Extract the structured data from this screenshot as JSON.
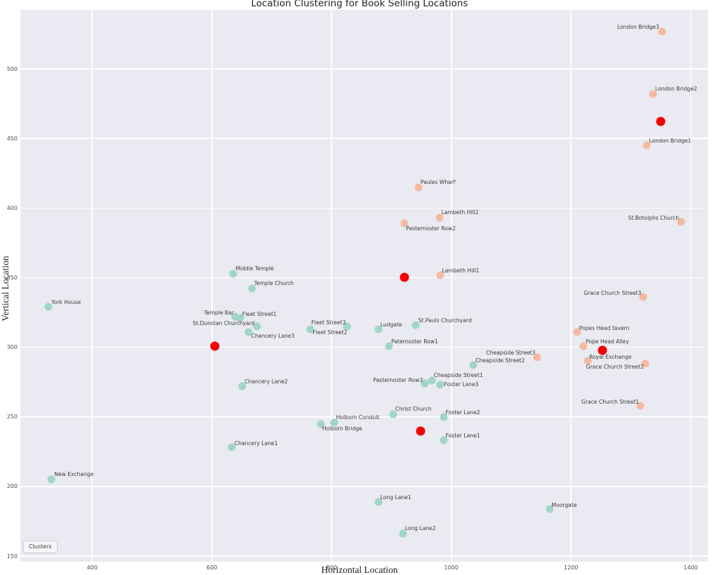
{
  "chart_data": {
    "type": "scatter",
    "title": "Location Clustering for Book Selling Locations",
    "xlabel": "Horizontal Location",
    "ylabel": "Vertical Location",
    "xlim": [
      280,
      1428.5
    ],
    "ylim": [
      146,
      542.4
    ],
    "x_ticks": [
      400,
      600,
      800,
      1000,
      1200,
      1400
    ],
    "y_ticks": [
      150,
      200,
      250,
      300,
      350,
      400,
      450,
      500
    ],
    "grid": true,
    "legend": {
      "title": "Clusters",
      "position": "lower left"
    },
    "colors": {
      "cluster_teal": "#a1d5c4",
      "cluster_salmon": "#f5b9a2",
      "centers": "#f40000",
      "plot_bg": "#eaeaf2",
      "grid": "#ffffff"
    },
    "series": [
      {
        "name": "cluster-teal",
        "color": "#a1d5c4",
        "points": [
          {
            "name": "York House",
            "x": 327,
            "y": 329,
            "anchor": "start",
            "dx": 4,
            "dy": -6
          },
          {
            "name": "Middle Temple",
            "x": 636,
            "y": 353,
            "anchor": "start",
            "dx": 3,
            "dy": -7
          },
          {
            "name": "Temple Church",
            "x": 667,
            "y": 342,
            "anchor": "start",
            "dx": 3,
            "dy": -7
          },
          {
            "name": "Temple Bar",
            "x": 639,
            "y": 322,
            "anchor": "end",
            "dx": -2,
            "dy": -5
          },
          {
            "name": "Fleet Street1",
            "x": 647,
            "y": 321,
            "anchor": "start",
            "dx": 3,
            "dy": -5
          },
          {
            "name": "St.Dunstan Churchyard",
            "x": 675,
            "y": 315,
            "anchor": "end",
            "dx": -3,
            "dy": -4
          },
          {
            "name": "Chancery Lane3",
            "x": 661,
            "y": 311,
            "anchor": "start",
            "dx": 4,
            "dy": 6
          },
          {
            "name": "Fleet Street2",
            "x": 765,
            "y": 313,
            "anchor": "start",
            "dx": 3,
            "dy": 5
          },
          {
            "name": "Fleet Street3",
            "x": 826,
            "y": 315,
            "anchor": "end",
            "dx": -2,
            "dy": -5
          },
          {
            "name": "Ludgate",
            "x": 878,
            "y": 313,
            "anchor": "start",
            "dx": 3,
            "dy": -6
          },
          {
            "name": "St.Pauls Churchyard",
            "x": 940,
            "y": 316,
            "anchor": "start",
            "dx": 4,
            "dy": -6
          },
          {
            "name": "Paternoster Row1",
            "x": 896,
            "y": 301,
            "anchor": "start",
            "dx": 3,
            "dy": -6
          },
          {
            "name": "Chancery Lane2",
            "x": 651,
            "y": 272,
            "anchor": "start",
            "dx": 3,
            "dy": -6
          },
          {
            "name": "Pasternoster Row3",
            "x": 956,
            "y": 274,
            "anchor": "end",
            "dx": -3,
            "dy": -4
          },
          {
            "name": "Cheapside Street1",
            "x": 967,
            "y": 276,
            "anchor": "start",
            "dx": 3,
            "dy": -7
          },
          {
            "name": "Foster Lane3",
            "x": 981,
            "y": 273,
            "anchor": "start",
            "dx": 6,
            "dy": 0
          },
          {
            "name": "Cheapside Street2",
            "x": 1037,
            "y": 287,
            "anchor": "start",
            "dx": 3,
            "dy": -6
          },
          {
            "name": "Christ Church",
            "x": 903,
            "y": 252,
            "anchor": "start",
            "dx": 3,
            "dy": -7
          },
          {
            "name": "Holborn Conduit",
            "x": 804,
            "y": 246,
            "anchor": "start",
            "dx": 3,
            "dy": -7
          },
          {
            "name": "Holborn Bridge",
            "x": 782,
            "y": 245,
            "anchor": "start",
            "dx": 2,
            "dy": 7
          },
          {
            "name": "Foster Lane2",
            "x": 987,
            "y": 250,
            "anchor": "start",
            "dx": 3,
            "dy": -6
          },
          {
            "name": "Foster Lane1",
            "x": 987,
            "y": 233,
            "anchor": "start",
            "dx": 3,
            "dy": -6
          },
          {
            "name": "Chancery Lane1",
            "x": 633,
            "y": 228,
            "anchor": "start",
            "dx": 4,
            "dy": -5
          },
          {
            "name": "New Exchange",
            "x": 332,
            "y": 205,
            "anchor": "start",
            "dx": 4,
            "dy": -7
          },
          {
            "name": "Long Lane1",
            "x": 878,
            "y": 189,
            "anchor": "start",
            "dx": 3,
            "dy": -6
          },
          {
            "name": "Long Lane2",
            "x": 919,
            "y": 166,
            "anchor": "start",
            "dx": 3,
            "dy": -7
          },
          {
            "name": "Moorgate",
            "x": 1164,
            "y": 184,
            "anchor": "start",
            "dx": 3,
            "dy": -5
          }
        ]
      },
      {
        "name": "cluster-salmon",
        "color": "#f5b9a2",
        "points": [
          {
            "name": "London Bridge3",
            "x": 1352,
            "y": 527,
            "anchor": "end",
            "dx": -4,
            "dy": -6
          },
          {
            "name": "London Bridge2",
            "x": 1337,
            "y": 482,
            "anchor": "start",
            "dx": 3,
            "dy": -7
          },
          {
            "name": "London Bridge1",
            "x": 1327,
            "y": 445,
            "anchor": "start",
            "dx": 3,
            "dy": -6
          },
          {
            "name": "St.Botolphs Church",
            "x": 1384,
            "y": 390,
            "anchor": "end",
            "dx": -3,
            "dy": -5
          },
          {
            "name": "Paules Wharf",
            "x": 945,
            "y": 415,
            "anchor": "start",
            "dx": 3,
            "dy": -7
          },
          {
            "name": "Lambeth Hill2",
            "x": 980,
            "y": 393,
            "anchor": "start",
            "dx": 3,
            "dy": -7
          },
          {
            "name": "Pasternoster Row2",
            "x": 922,
            "y": 389,
            "anchor": "start",
            "dx": 2,
            "dy": 8
          },
          {
            "name": "Lambeth Hill1",
            "x": 981,
            "y": 352,
            "anchor": "start",
            "dx": 3,
            "dy": -6
          },
          {
            "name": "Grace Church Street3",
            "x": 1321,
            "y": 336,
            "anchor": "end",
            "dx": -3,
            "dy": -5
          },
          {
            "name": "Popes Head tavern",
            "x": 1210,
            "y": 311,
            "anchor": "start",
            "dx": 3,
            "dy": -5
          },
          {
            "name": "Pope Head Alley",
            "x": 1221,
            "y": 301,
            "anchor": "start",
            "dx": 3,
            "dy": -6
          },
          {
            "name": "Royal Exchange",
            "x": 1228,
            "y": 290,
            "anchor": "start",
            "dx": 2,
            "dy": -5
          },
          {
            "name": "Grace Church Street2",
            "x": 1324,
            "y": 288,
            "anchor": "end",
            "dx": -2,
            "dy": 5
          },
          {
            "name": "Grace Church Street1",
            "x": 1316,
            "y": 258,
            "anchor": "end",
            "dx": -2,
            "dy": -5
          },
          {
            "name": "Cheapside Street3",
            "x": 1144,
            "y": 293,
            "anchor": "end",
            "dx": -3,
            "dy": -6
          }
        ]
      }
    ],
    "centers": [
      {
        "x": 1350,
        "y": 462
      },
      {
        "x": 922,
        "y": 350
      },
      {
        "x": 605,
        "y": 301
      },
      {
        "x": 949,
        "y": 240
      },
      {
        "x": 1252,
        "y": 298
      }
    ]
  }
}
